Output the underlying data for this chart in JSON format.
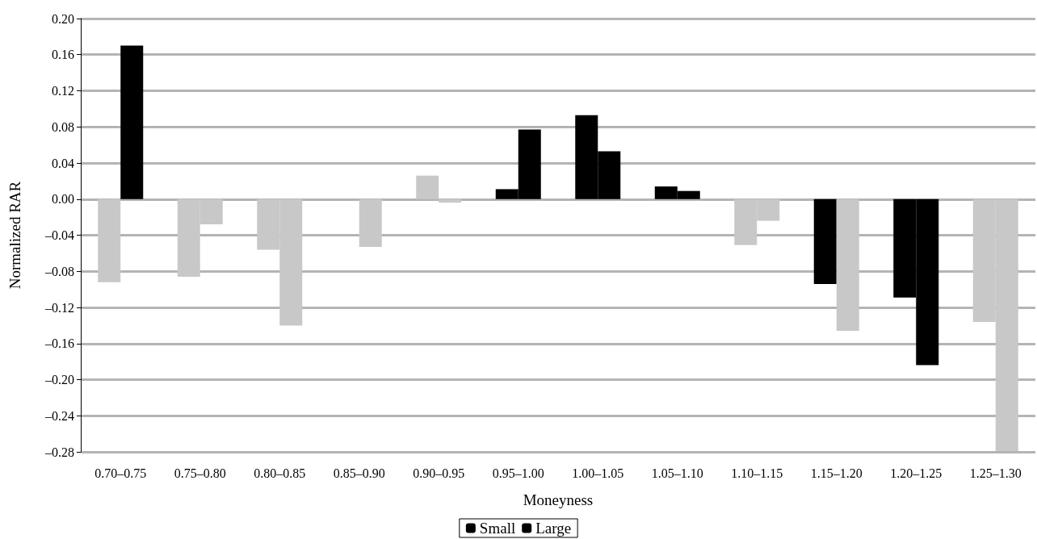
{
  "chart_data": {
    "type": "bar",
    "xlabel": "Moneyness",
    "ylabel": "Normalized RAR",
    "categories": [
      "0.70–0.75",
      "0.75–0.80",
      "0.80–0.85",
      "0.85–0.90",
      "0.90–0.95",
      "0.95–1.00",
      "1.00–1.05",
      "1.05–1.10",
      "1.10–1.15",
      "1.15–1.20",
      "1.20–1.25",
      "1.25–1.30"
    ],
    "series": [
      {
        "name": "Small",
        "color": "#000000",
        "values": [
          -0.092,
          -0.086,
          -0.056,
          null,
          0.026,
          0.011,
          0.093,
          0.014,
          -0.051,
          -0.094,
          -0.109,
          -0.136
        ],
        "colors": [
          "#c8c8c8",
          "#c8c8c8",
          "#c8c8c8",
          "#c8c8c8",
          "#c8c8c8",
          "#000000",
          "#000000",
          "#000000",
          "#c8c8c8",
          "#000000",
          "#000000",
          "#c8c8c8"
        ]
      },
      {
        "name": "Large",
        "color": "#000000",
        "values": [
          0.17,
          -0.028,
          -0.14,
          -0.053,
          -0.004,
          0.077,
          0.053,
          0.009,
          -0.024,
          -0.146,
          -0.184,
          -0.279
        ],
        "colors": [
          "#000000",
          "#c8c8c8",
          "#c8c8c8",
          "#c8c8c8",
          "#c8c8c8",
          "#000000",
          "#000000",
          "#000000",
          "#c8c8c8",
          "#c8c8c8",
          "#000000",
          "#c8c8c8"
        ]
      }
    ],
    "ylim": [
      -0.28,
      0.2
    ],
    "yticks": [
      {
        "value": -0.28,
        "label": "–0.28"
      },
      {
        "value": -0.24,
        "label": "–0.24"
      },
      {
        "value": -0.2,
        "label": "–0.20"
      },
      {
        "value": -0.16,
        "label": "–0.16"
      },
      {
        "value": -0.12,
        "label": "–0.12"
      },
      {
        "value": -0.08,
        "label": "–0.08"
      },
      {
        "value": -0.04,
        "label": "–0.04"
      },
      {
        "value": 0,
        "label": "0.00"
      },
      {
        "value": 0.04,
        "label": "0.04"
      },
      {
        "value": 0.08,
        "label": "0.08"
      },
      {
        "value": 0.12,
        "label": "0.12"
      },
      {
        "value": 0.16,
        "label": "0.16"
      },
      {
        "value": 0.2,
        "label": "0.20"
      }
    ],
    "grid": "y",
    "legend": "bottom"
  }
}
